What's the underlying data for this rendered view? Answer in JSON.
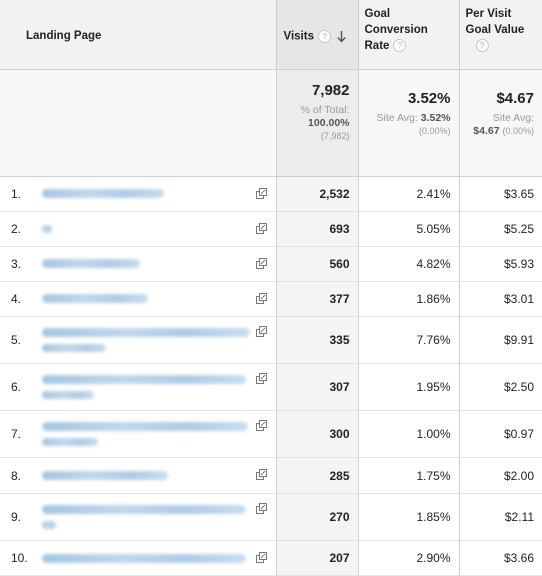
{
  "columns": {
    "landing_page": "Landing Page",
    "visits": "Visits",
    "goal_conversion_rate_line1": "Goal",
    "goal_conversion_rate_line2": "Conversion",
    "goal_conversion_rate_line3": "Rate",
    "per_visit_goal_value_line1": "Per Visit",
    "per_visit_goal_value_line2": "Goal Value",
    "help_glyph": "?"
  },
  "totals": {
    "visits": "7,982",
    "visits_pct_label": "% of Total:",
    "visits_pct": "100.00%",
    "visits_count": "(7,982)",
    "rate": "3.52%",
    "rate_avg_label": "Site Avg:",
    "rate_avg": "3.52%",
    "rate_avg_diff": "(0.00%)",
    "value": "$4.67",
    "value_avg_label": "Site Avg:",
    "value_avg": "$4.67",
    "value_avg_diff": "(0.00%)"
  },
  "rows": [
    {
      "num": "1.",
      "visits": "2,532",
      "rate": "2.41%",
      "value": "$3.65"
    },
    {
      "num": "2.",
      "visits": "693",
      "rate": "5.05%",
      "value": "$5.25"
    },
    {
      "num": "3.",
      "visits": "560",
      "rate": "4.82%",
      "value": "$5.93"
    },
    {
      "num": "4.",
      "visits": "377",
      "rate": "1.86%",
      "value": "$3.01"
    },
    {
      "num": "5.",
      "visits": "335",
      "rate": "7.76%",
      "value": "$9.91"
    },
    {
      "num": "6.",
      "visits": "307",
      "rate": "1.95%",
      "value": "$2.50"
    },
    {
      "num": "7.",
      "visits": "300",
      "rate": "1.00%",
      "value": "$0.97"
    },
    {
      "num": "8.",
      "visits": "285",
      "rate": "1.75%",
      "value": "$2.00"
    },
    {
      "num": "9.",
      "visits": "270",
      "rate": "1.85%",
      "value": "$2.11"
    },
    {
      "num": "10.",
      "visits": "207",
      "rate": "2.90%",
      "value": "$3.66"
    }
  ],
  "colors": {
    "header_bg": "#f2f2f2",
    "sorted_col_bg": "#e6e6e6",
    "redaction_blur": "#a6c6e2"
  }
}
